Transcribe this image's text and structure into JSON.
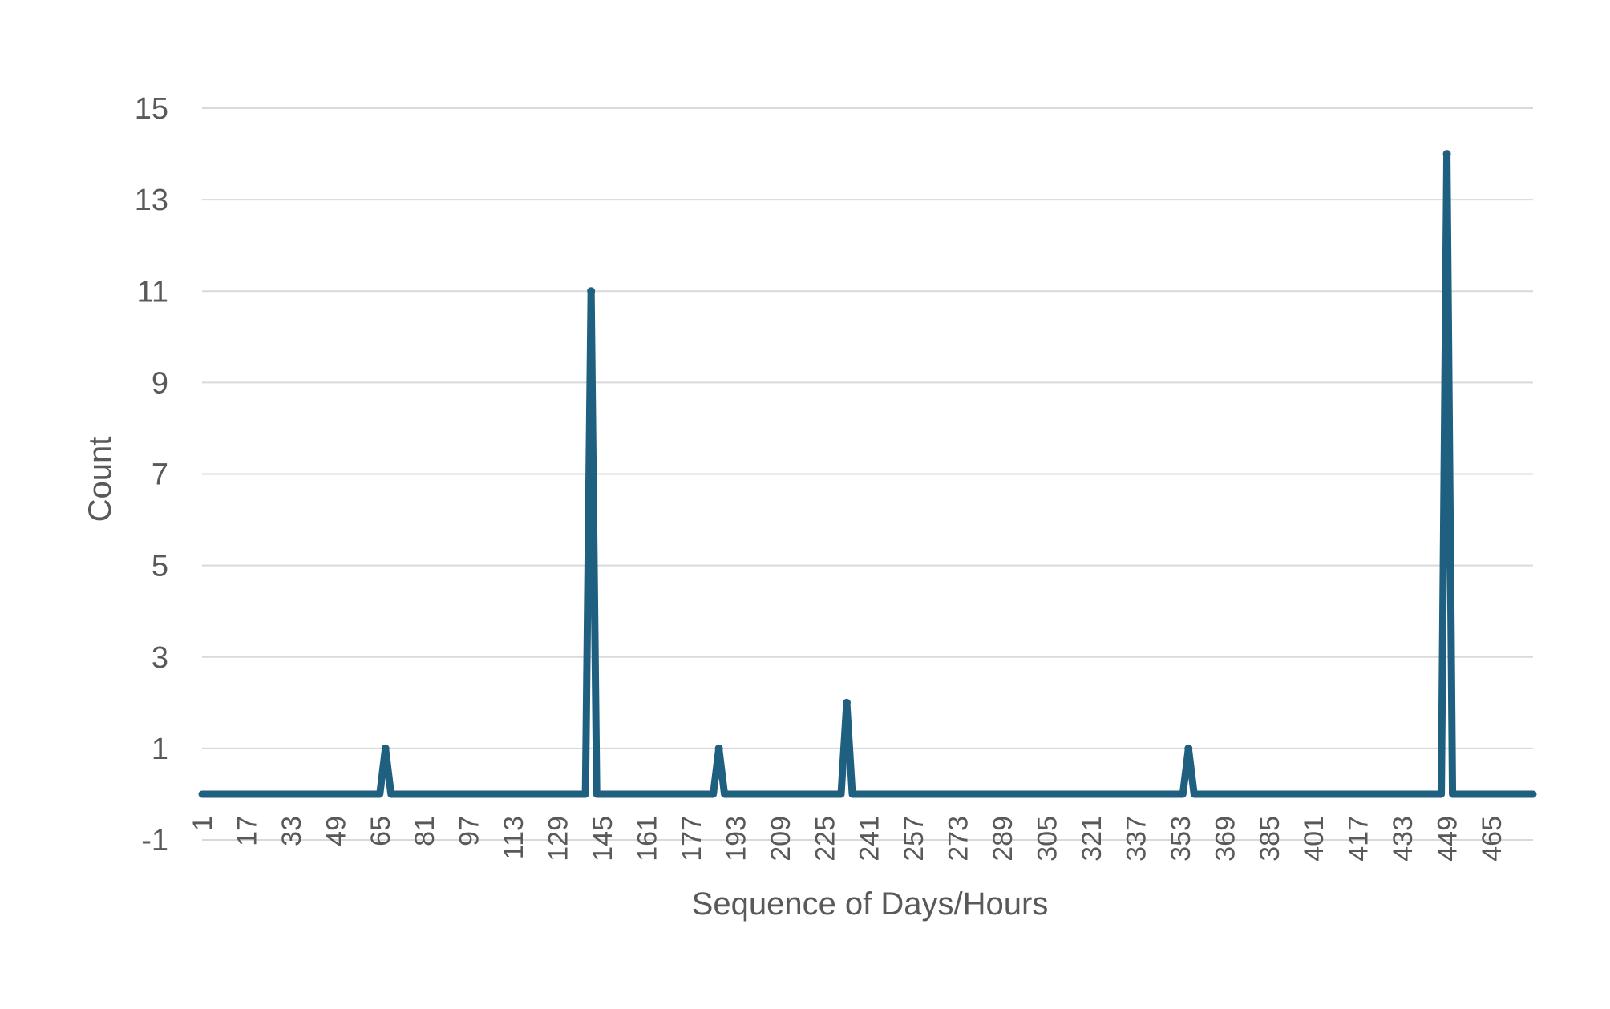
{
  "chart_data": {
    "type": "line",
    "title": "",
    "xlabel": "Sequence of Days/Hours",
    "ylabel": "Count",
    "ylim": [
      -1,
      15
    ],
    "y_ticks": [
      "-1",
      "1",
      "3",
      "5",
      "7",
      "9",
      "11",
      "13",
      "15"
    ],
    "x_ticks": [
      "1",
      "17",
      "33",
      "49",
      "65",
      "81",
      "97",
      "113",
      "129",
      "145",
      "161",
      "177",
      "193",
      "209",
      "225",
      "241",
      "257",
      "273",
      "289",
      "305",
      "321",
      "337",
      "353",
      "369",
      "385",
      "401",
      "417",
      "433",
      "449",
      "465"
    ],
    "x_range": [
      1,
      480
    ],
    "grid": true,
    "legend": "none",
    "series": [
      {
        "color": "#1f5f7f",
        "baseline": 0,
        "points": [
          {
            "x": 67,
            "y": 1
          },
          {
            "x": 141,
            "y": 11
          },
          {
            "x": 187,
            "y": 1
          },
          {
            "x": 233,
            "y": 2
          },
          {
            "x": 356,
            "y": 1
          },
          {
            "x": 449,
            "y": 14
          }
        ]
      }
    ]
  }
}
